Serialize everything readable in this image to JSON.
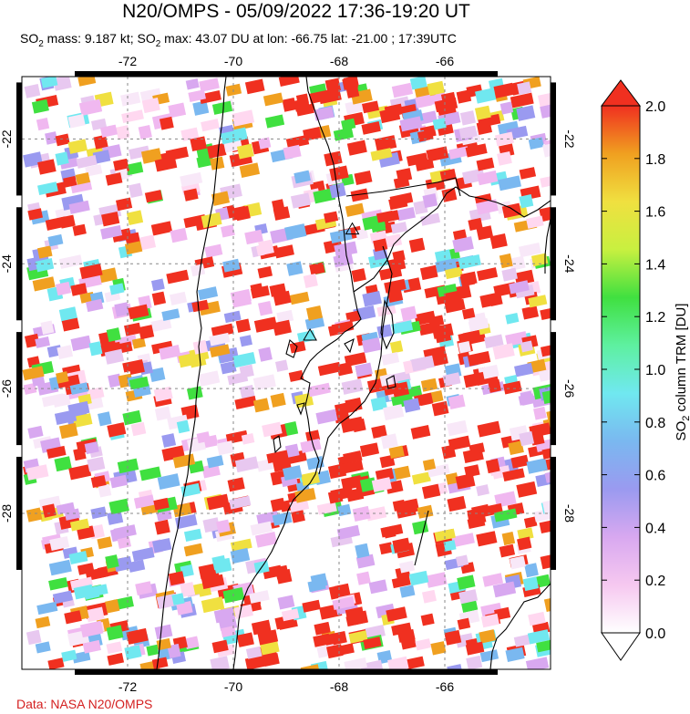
{
  "title": "N20/OMPS - 05/09/2022 17:36-19:20 UT",
  "subtitle": {
    "mass_label": "SO",
    "mass_sub": "2",
    "mass_text": " mass: 9.187 kt; SO",
    "max_sub": "2",
    "max_text": " max: 43.07 DU at lon: -66.75 lat: -21.00 ; 17:39UTC"
  },
  "credit": "Data: NASA N20/OMPS",
  "map": {
    "lon_range": [
      -74.0,
      -64.0
    ],
    "lat_range": [
      -21.0,
      -30.5
    ],
    "lon_ticks": [
      -72,
      -70,
      -68,
      -66
    ],
    "lat_ticks": [
      -22,
      -24,
      -26,
      -28
    ],
    "lon_tick_labels": [
      "-72",
      "-70",
      "-68",
      "-66"
    ],
    "lat_tick_labels": [
      "-22",
      "-24",
      "-26",
      "-28"
    ],
    "volcano_markers": [
      {
        "lon": -67.75,
        "lat": -23.45
      },
      {
        "lon": -68.55,
        "lat": -25.15
      }
    ]
  },
  "colorbar": {
    "title_main": "SO",
    "title_sub": "2",
    "title_rest": " column TRM [DU]",
    "min": 0.0,
    "max": 2.0,
    "tick_values": [
      0.0,
      0.2,
      0.4,
      0.6,
      0.8,
      1.0,
      1.2,
      1.4,
      1.6,
      1.8,
      2.0
    ],
    "tick_labels": [
      "0.0",
      "0.2",
      "0.4",
      "0.6",
      "0.8",
      "1.0",
      "1.2",
      "1.4",
      "1.6",
      "1.8",
      "2.0"
    ],
    "colors": [
      "#ffffff",
      "#f6c8f0",
      "#d8a8f0",
      "#9a9af0",
      "#7ab8f0",
      "#70e8f0",
      "#5ef0a0",
      "#40e040",
      "#c8f040",
      "#f0e040",
      "#f0a020",
      "#f03020"
    ]
  },
  "swath_colors": [
    "#f03020",
    "#f0b8f0",
    "#e8c8f0",
    "#d8a8f0",
    "#ffd8f0",
    "#9a9af0",
    "#7ab8f0",
    "#70e8f0",
    "#40e040",
    "#f0e040",
    "#f0a020",
    "#f8e8f8"
  ]
}
